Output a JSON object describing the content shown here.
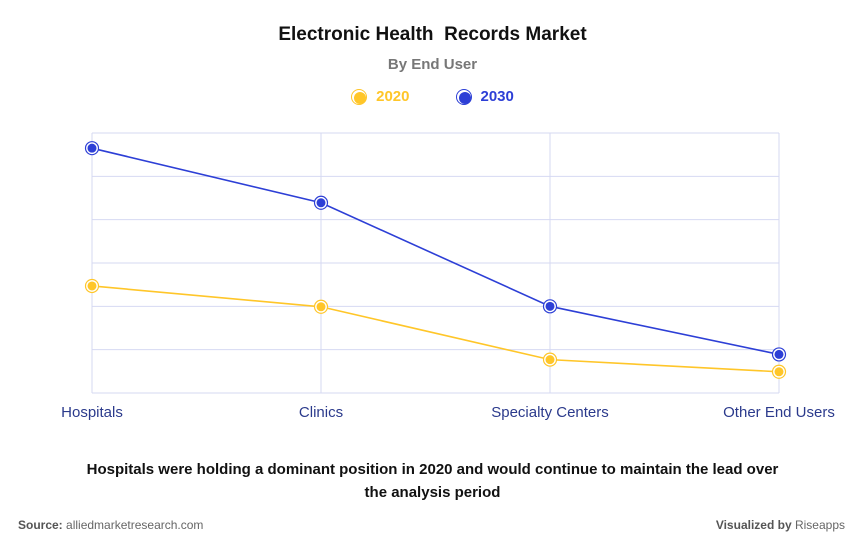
{
  "title": "Electronic Health  Records Market",
  "subtitle": "By End User",
  "source": {
    "label": "Source:",
    "text": "alliedmarketresearch.com"
  },
  "credit": {
    "label": "Visualized by",
    "text": "Riseapps"
  },
  "caption": "Hospitals were holding a dominant position in 2020 and would continue to maintain the lead over the analysis period",
  "chart_data": {
    "type": "line",
    "categories": [
      "Hospitals",
      "Clinics",
      "Specialty Centers",
      "Other End Users"
    ],
    "series": [
      {
        "name": "2020",
        "color": "#FFC629",
        "values": [
          24.7,
          19.9,
          7.7,
          4.9
        ]
      },
      {
        "name": "2030",
        "color": "#2D3FD6",
        "values": [
          56.5,
          43.9,
          20.0,
          8.9
        ]
      }
    ],
    "ylim": [
      0,
      60
    ],
    "grid": true,
    "legend": "top-center",
    "xlabel": "",
    "ylabel": ""
  }
}
